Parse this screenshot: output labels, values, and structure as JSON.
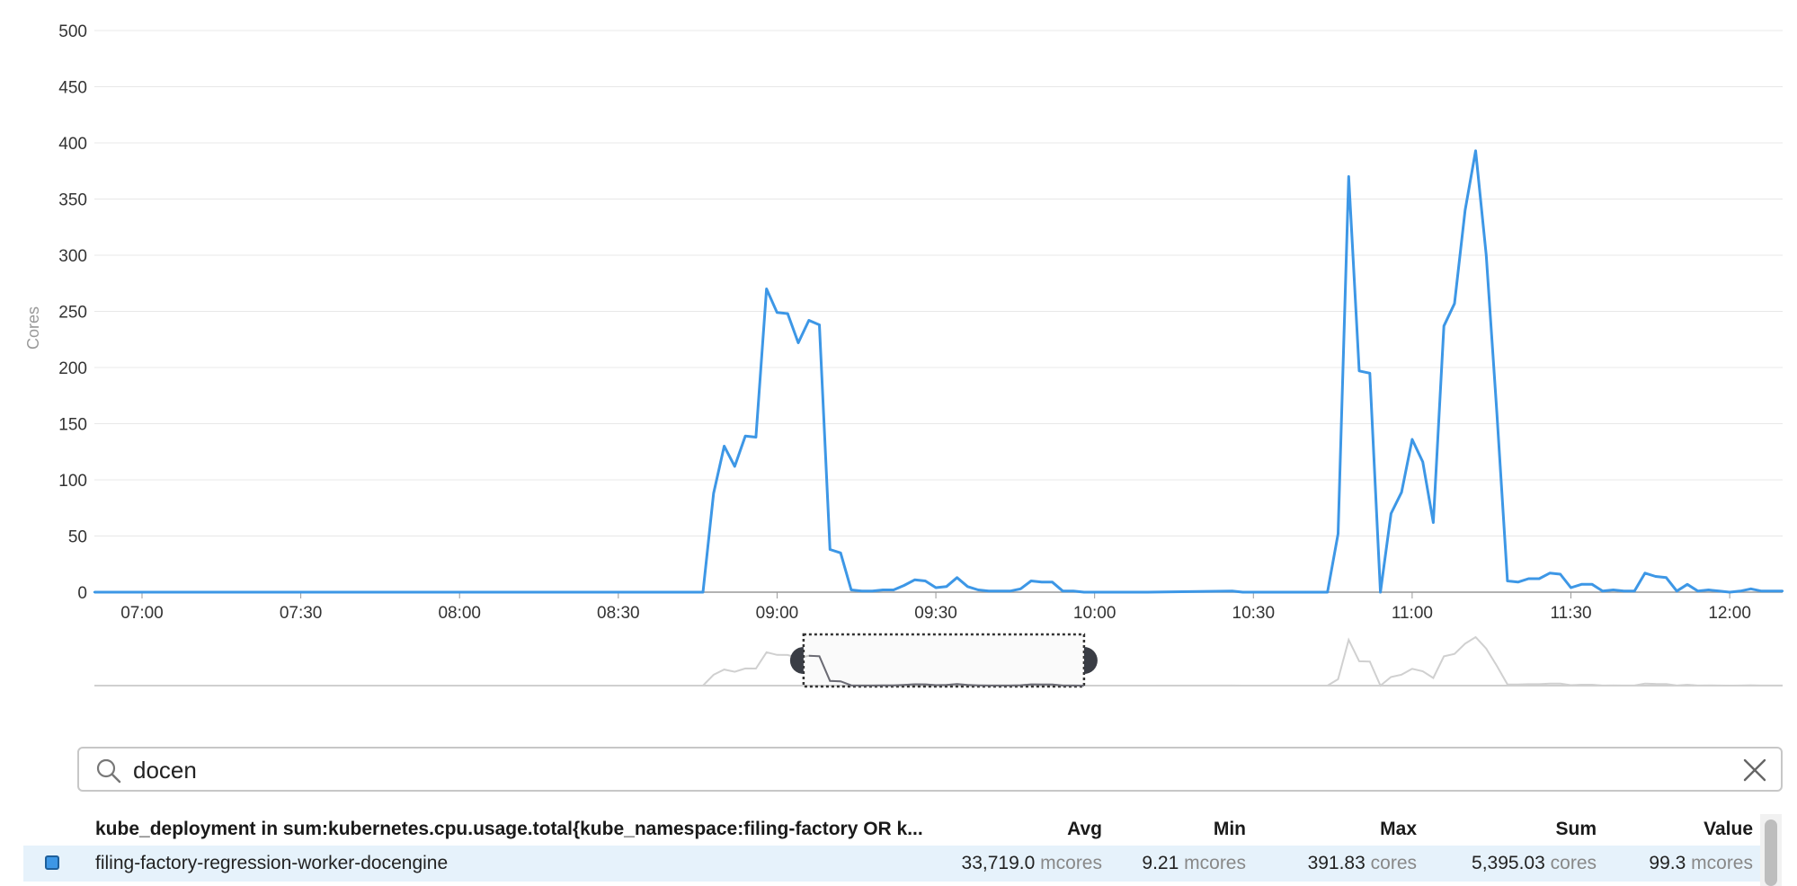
{
  "chart_data": {
    "type": "line",
    "ylabel": "Cores",
    "ylim": [
      0,
      500
    ],
    "y_ticks": [
      "0",
      "50",
      "100",
      "150",
      "200",
      "250",
      "300",
      "350",
      "400",
      "450",
      "500"
    ],
    "x_ticks": [
      "07:00",
      "07:30",
      "08:00",
      "08:30",
      "09:00",
      "09:30",
      "10:00",
      "10:30",
      "11:00",
      "11:30",
      "12:00"
    ],
    "x_range": [
      "06:51",
      "12:10"
    ],
    "grid": true,
    "series": [
      {
        "name": "filing-factory-regression-worker-docengine",
        "color": "#3d97e6",
        "x": [
          "06:51",
          "08:46",
          "08:48",
          "08:50",
          "08:52",
          "08:54",
          "08:56",
          "08:58",
          "09:00",
          "09:02",
          "09:04",
          "09:06",
          "09:08",
          "09:10",
          "09:12",
          "09:14",
          "09:16",
          "09:18",
          "09:20",
          "09:22",
          "09:24",
          "09:26",
          "09:28",
          "09:30",
          "09:32",
          "09:34",
          "09:36",
          "09:38",
          "09:40",
          "09:42",
          "09:44",
          "09:46",
          "09:48",
          "09:50",
          "09:52",
          "09:54",
          "09:56",
          "09:58",
          "10:00",
          "10:10",
          "10:26",
          "10:28",
          "10:40",
          "10:42",
          "10:44",
          "10:46",
          "10:48",
          "10:50",
          "10:52",
          "10:54",
          "10:56",
          "10:58",
          "11:00",
          "11:02",
          "11:04",
          "11:06",
          "11:08",
          "11:10",
          "11:12",
          "11:14",
          "11:16",
          "11:18",
          "11:20",
          "11:22",
          "11:24",
          "11:26",
          "11:28",
          "11:30",
          "11:32",
          "11:34",
          "11:36",
          "11:38",
          "11:40",
          "11:42",
          "11:44",
          "11:46",
          "11:48",
          "11:50",
          "11:52",
          "11:54",
          "11:56",
          "11:58",
          "12:00",
          "12:02",
          "12:04",
          "12:06",
          "12:10"
        ],
        "values": [
          0,
          0,
          88,
          130,
          112,
          139,
          138,
          270,
          249,
          248,
          222,
          242,
          238,
          38,
          35,
          2,
          1,
          1,
          2,
          2,
          6,
          11,
          10,
          4,
          5,
          13,
          5,
          2,
          1,
          1,
          1,
          3,
          10,
          9,
          9,
          1,
          1,
          0,
          0,
          0,
          1,
          0,
          0,
          0,
          0,
          52,
          370,
          197,
          195,
          0,
          70,
          89,
          136,
          116,
          62,
          237,
          257,
          340,
          393,
          300,
          160,
          10,
          9,
          12,
          12,
          17,
          16,
          4,
          7,
          7,
          1,
          2,
          1,
          1,
          17,
          14,
          13,
          1,
          7,
          1,
          2,
          1,
          0,
          1,
          3,
          1,
          1
        ]
      }
    ]
  },
  "navigator": {
    "window_start": "09:05",
    "window_end": "09:58"
  },
  "search": {
    "value": "docen"
  },
  "legend": {
    "header": {
      "name": "kube_deployment in sum:kubernetes.cpu.usage.total{kube_namespace:filing-factory OR k...",
      "avg": "Avg",
      "min": "Min",
      "max": "Max",
      "sum": "Sum",
      "value": "Value"
    },
    "rows": [
      {
        "color": "#3d97e6",
        "name": "filing-factory-regression-worker-docengine",
        "avg_num": "33,719.0",
        "avg_unit": "mcores",
        "min_num": "9.21",
        "min_unit": "mcores",
        "max_num": "391.83",
        "max_unit": "cores",
        "sum_num": "5,395.03",
        "sum_unit": "cores",
        "value_num": "99.3",
        "value_unit": "mcores"
      }
    ]
  }
}
